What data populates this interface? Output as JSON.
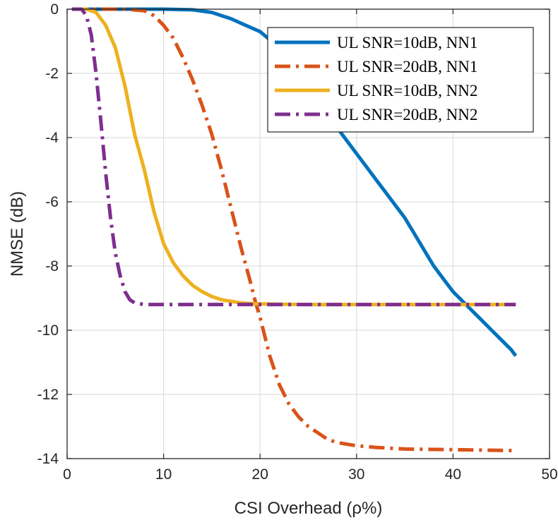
{
  "chart_data": {
    "type": "line",
    "xlabel": "CSI Overhead (ρ%)",
    "ylabel": "NMSE (dB)",
    "xlim": [
      0,
      50
    ],
    "ylim": [
      -14,
      0
    ],
    "xticks": [
      0,
      10,
      20,
      30,
      40,
      50
    ],
    "yticks": [
      0,
      -2,
      -4,
      -6,
      -8,
      -10,
      -12,
      -14
    ],
    "grid": true,
    "legend_position": "top-right",
    "series": [
      {
        "name": "UL SNR=10dB, NN1",
        "color": "#0072BD",
        "dash": "solid",
        "x": [
          0.5,
          2,
          5,
          10,
          13,
          15,
          17,
          18.5,
          20,
          22,
          23,
          24,
          25,
          26,
          27,
          28,
          29,
          30,
          31,
          32,
          33,
          34,
          35,
          36,
          37,
          38,
          39,
          40,
          41,
          42,
          43,
          44,
          45,
          46,
          46.5
        ],
        "y": [
          0,
          0,
          0,
          0,
          -0.02,
          -0.1,
          -0.3,
          -0.5,
          -0.7,
          -1.2,
          -1.5,
          -1.9,
          -2.4,
          -2.9,
          -3.3,
          -3.7,
          -4.1,
          -4.5,
          -4.9,
          -5.3,
          -5.7,
          -6.1,
          -6.5,
          -7.0,
          -7.5,
          -8.0,
          -8.4,
          -8.8,
          -9.1,
          -9.4,
          -9.7,
          -10.0,
          -10.3,
          -10.6,
          -10.8
        ]
      },
      {
        "name": "UL SNR=20dB, NN1",
        "color": "#D95319",
        "dash": "dashdot",
        "x": [
          0.5,
          3,
          6,
          8,
          9,
          10,
          11,
          12,
          13,
          14,
          15,
          16,
          17,
          18,
          19,
          19.5,
          20,
          21,
          22,
          23,
          24,
          25,
          26,
          27,
          28,
          30,
          32,
          35,
          40,
          46.5
        ],
        "y": [
          0,
          0,
          0,
          -0.05,
          -0.2,
          -0.5,
          -0.9,
          -1.5,
          -2.2,
          -3.0,
          -3.9,
          -5.0,
          -6.2,
          -7.4,
          -8.5,
          -9.1,
          -9.6,
          -10.8,
          -11.7,
          -12.3,
          -12.7,
          -13.0,
          -13.2,
          -13.4,
          -13.5,
          -13.6,
          -13.65,
          -13.7,
          -13.72,
          -13.75
        ]
      },
      {
        "name": "UL SNR=10dB, NN2",
        "color": "#EDB120",
        "dash": "solid",
        "x": [
          0.5,
          2,
          3,
          4,
          5,
          6,
          7,
          8,
          9,
          10,
          11,
          12,
          13,
          14,
          15,
          16,
          17,
          18,
          19,
          20,
          22,
          25,
          30,
          35,
          40,
          46.5
        ],
        "y": [
          0,
          0,
          -0.1,
          -0.5,
          -1.2,
          -2.4,
          -3.9,
          -5.0,
          -6.3,
          -7.3,
          -7.9,
          -8.3,
          -8.6,
          -8.8,
          -8.95,
          -9.05,
          -9.1,
          -9.15,
          -9.17,
          -9.18,
          -9.19,
          -9.2,
          -9.2,
          -9.2,
          -9.2,
          -9.2
        ]
      },
      {
        "name": "UL SNR=20dB, NN2",
        "color": "#7E2F8E",
        "dash": "dashdot",
        "x": [
          0.5,
          1.5,
          2,
          2.5,
          3,
          3.5,
          4,
          4.5,
          5,
          5.5,
          6,
          6.5,
          7,
          8,
          10,
          15,
          20,
          30,
          40,
          46.5
        ],
        "y": [
          0,
          0,
          -0.2,
          -0.8,
          -2.0,
          -3.5,
          -5.1,
          -6.5,
          -7.6,
          -8.3,
          -8.8,
          -9.05,
          -9.15,
          -9.2,
          -9.2,
          -9.2,
          -9.2,
          -9.2,
          -9.2,
          -9.2
        ]
      }
    ]
  }
}
